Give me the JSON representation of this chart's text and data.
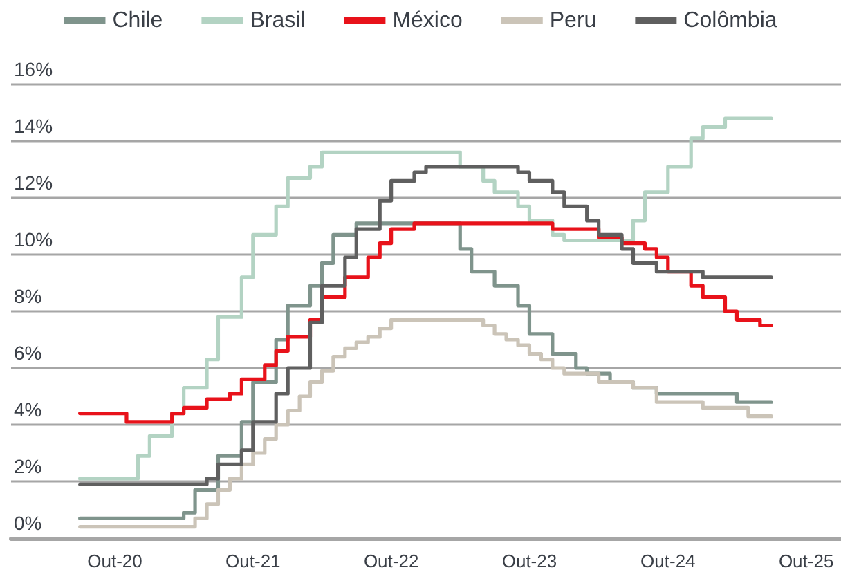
{
  "chart_data": {
    "type": "step",
    "xlim": [
      "2020-01",
      "2026-01"
    ],
    "xticks": [
      {
        "value": "2020-10",
        "label": "Out-20"
      },
      {
        "value": "2021-10",
        "label": "Out-21"
      },
      {
        "value": "2022-10",
        "label": "Out-22"
      },
      {
        "value": "2023-10",
        "label": "Out-23"
      },
      {
        "value": "2024-10",
        "label": "Out-24"
      },
      {
        "value": "2025-10",
        "label": "Out-25"
      }
    ],
    "ylim": [
      0,
      16
    ],
    "yticks": [
      {
        "value": 0,
        "label": "0%"
      },
      {
        "value": 2,
        "label": "2%"
      },
      {
        "value": 4,
        "label": "4%"
      },
      {
        "value": 6,
        "label": "6%"
      },
      {
        "value": 8,
        "label": "8%"
      },
      {
        "value": 10,
        "label": "10%"
      },
      {
        "value": 12,
        "label": "12%"
      },
      {
        "value": 14,
        "label": "14%"
      },
      {
        "value": 16,
        "label": "16%"
      }
    ],
    "grid": "y",
    "legend": "top",
    "marker": "none",
    "line_style": "solid",
    "series": [
      {
        "name": "Chile",
        "color": "#7f948c",
        "x": [
          "2020-07",
          "2021-04",
          "2021-05",
          "2021-07",
          "2021-09",
          "2021-10",
          "2021-12",
          "2022-01",
          "2022-03",
          "2022-04",
          "2022-05",
          "2022-07",
          "2023-04",
          "2023-05",
          "2023-07",
          "2023-09",
          "2023-10",
          "2023-12",
          "2024-02",
          "2024-03",
          "2024-05",
          "2024-07",
          "2024-09",
          "2025-04",
          "2025-07"
        ],
        "values": [
          0.7,
          0.9,
          1.7,
          2.9,
          4.1,
          5.5,
          7.0,
          8.2,
          8.9,
          9.7,
          10.7,
          11.1,
          10.2,
          9.4,
          8.9,
          8.2,
          7.2,
          6.5,
          6.0,
          5.8,
          5.5,
          5.3,
          5.1,
          4.8,
          4.8
        ]
      },
      {
        "name": "Brasil",
        "color": "#b3d3c3",
        "x": [
          "2020-07",
          "2020-12",
          "2021-01",
          "2021-03",
          "2021-04",
          "2021-06",
          "2021-07",
          "2021-09",
          "2021-10",
          "2021-12",
          "2022-01",
          "2022-03",
          "2022-04",
          "2023-04",
          "2023-06",
          "2023-07",
          "2023-09",
          "2023-10",
          "2023-12",
          "2024-01",
          "2024-07",
          "2024-08",
          "2024-10",
          "2024-12",
          "2025-01",
          "2025-03",
          "2025-07"
        ],
        "values": [
          2.1,
          2.9,
          3.6,
          4.4,
          5.3,
          6.3,
          7.8,
          9.2,
          10.7,
          11.7,
          12.7,
          13.1,
          13.6,
          13.1,
          12.6,
          12.2,
          11.7,
          11.2,
          10.7,
          10.5,
          11.2,
          12.2,
          13.1,
          14.1,
          14.5,
          14.8,
          14.8
        ]
      },
      {
        "name": "México",
        "color": "#e8121a",
        "x": [
          "2020-07",
          "2020-11",
          "2021-03",
          "2021-04",
          "2021-06",
          "2021-08",
          "2021-09",
          "2021-11",
          "2021-12",
          "2022-01",
          "2022-03",
          "2022-04",
          "2022-06",
          "2022-08",
          "2022-09",
          "2022-10",
          "2022-12",
          "2023-12",
          "2024-04",
          "2024-06",
          "2024-08",
          "2024-09",
          "2024-10",
          "2024-12",
          "2025-01",
          "2025-03",
          "2025-04",
          "2025-06",
          "2025-07"
        ],
        "values": [
          4.4,
          4.1,
          4.4,
          4.6,
          4.9,
          5.1,
          5.6,
          6.1,
          6.6,
          7.1,
          7.7,
          8.5,
          9.2,
          9.9,
          10.4,
          10.9,
          11.1,
          10.9,
          10.6,
          10.4,
          10.2,
          9.9,
          9.4,
          8.9,
          8.5,
          8.0,
          7.7,
          7.5,
          7.5
        ]
      },
      {
        "name": "Peru",
        "color": "#cbc4b8",
        "x": [
          "2020-07",
          "2021-05",
          "2021-06",
          "2021-07",
          "2021-08",
          "2021-09",
          "2021-10",
          "2021-11",
          "2021-12",
          "2022-01",
          "2022-02",
          "2022-03",
          "2022-04",
          "2022-05",
          "2022-06",
          "2022-07",
          "2022-08",
          "2022-09",
          "2022-10",
          "2023-06",
          "2023-07",
          "2023-08",
          "2023-09",
          "2023-10",
          "2023-11",
          "2023-12",
          "2024-01",
          "2024-04",
          "2024-07",
          "2024-09",
          "2025-01",
          "2025-05",
          "2025-07"
        ],
        "values": [
          0.4,
          0.7,
          1.2,
          1.7,
          2.1,
          2.6,
          3.0,
          3.5,
          4.0,
          4.5,
          5.0,
          5.5,
          5.9,
          6.4,
          6.7,
          6.9,
          7.1,
          7.4,
          7.7,
          7.5,
          7.2,
          7.0,
          6.8,
          6.5,
          6.3,
          6.0,
          5.8,
          5.5,
          5.3,
          4.8,
          4.6,
          4.3,
          4.3
        ]
      },
      {
        "name": "Colômbia",
        "color": "#5f5f5f",
        "x": [
          "2020-07",
          "2021-06",
          "2021-07",
          "2021-09",
          "2021-10",
          "2021-12",
          "2022-01",
          "2022-03",
          "2022-04",
          "2022-06",
          "2022-07",
          "2022-09",
          "2022-10",
          "2022-12",
          "2023-01",
          "2023-09",
          "2023-10",
          "2023-12",
          "2024-01",
          "2024-03",
          "2024-04",
          "2024-06",
          "2024-07",
          "2024-09",
          "2025-01",
          "2025-07"
        ],
        "values": [
          1.9,
          2.1,
          2.6,
          3.1,
          4.1,
          5.1,
          6.0,
          7.6,
          8.9,
          9.9,
          10.9,
          11.9,
          12.6,
          12.9,
          13.1,
          12.9,
          12.6,
          12.2,
          11.7,
          11.2,
          10.7,
          10.2,
          9.7,
          9.4,
          9.2,
          9.2
        ]
      }
    ]
  }
}
